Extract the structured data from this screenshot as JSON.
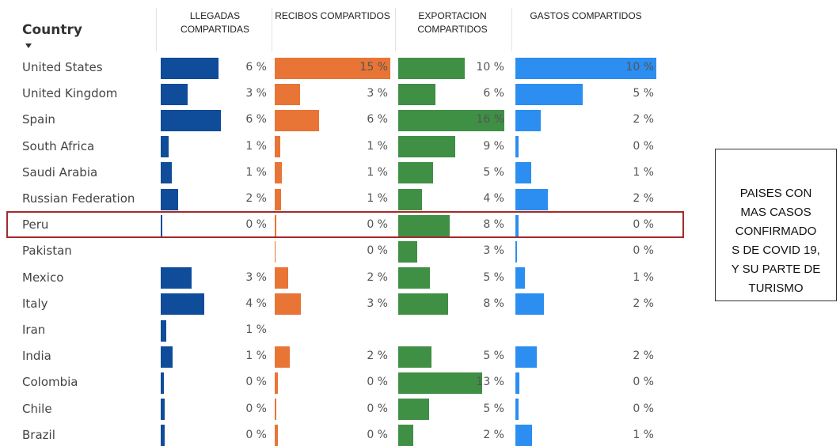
{
  "chart_data": {
    "type": "bar-table",
    "category_header": "Country",
    "categories": [
      "United States",
      "United Kingdom",
      "Spain",
      "South Africa",
      "Saudi Arabia",
      "Russian Federation",
      "Peru",
      "Pakistan",
      "Mexico",
      "Italy",
      "Iran",
      "India",
      "Colombia",
      "Chile",
      "Brazil"
    ],
    "highlight": 6,
    "series": [
      {
        "name": "LLEGADAS COMPARTIDAS",
        "color": "#0f4c9a",
        "xlim": [
          0,
          11
        ],
        "values": [
          5.9,
          2.7,
          6.1,
          0.8,
          1.1,
          1.8,
          0.2,
          null,
          3.1,
          4.4,
          0.6,
          1.2,
          0.3,
          0.4,
          0.4
        ],
        "value_labels": [
          "6 %",
          "3 %",
          "6 %",
          "1 %",
          "1 %",
          "2 %",
          "0 %",
          null,
          "3 %",
          "4 %",
          "1 %",
          "1 %",
          "0 %",
          "0 %",
          "0 %"
        ]
      },
      {
        "name": "RECIBOS COMPARTIDOS",
        "color": "#e87436",
        "xlim": [
          0,
          15.2
        ],
        "values": [
          15.2,
          3.3,
          5.8,
          0.7,
          0.9,
          0.8,
          0.2,
          0.1,
          1.8,
          3.4,
          null,
          2.0,
          0.4,
          0.2,
          0.4
        ],
        "value_labels": [
          "15 %",
          "3 %",
          "6 %",
          "1 %",
          "1 %",
          "1 %",
          "0 %",
          "0 %",
          "2 %",
          "3 %",
          null,
          "2 %",
          "0 %",
          "0 %",
          "0 %"
        ]
      },
      {
        "name": "EXPORTACION COMPARTIDOS",
        "color": "#3f8f45",
        "xlim": [
          0,
          16.3
        ],
        "values": [
          10.0,
          5.6,
          16.0,
          8.6,
          5.2,
          3.6,
          7.7,
          2.8,
          4.8,
          7.5,
          null,
          5.0,
          12.6,
          4.6,
          2.3
        ],
        "value_labels": [
          "10 %",
          "6 %",
          "16 %",
          "9 %",
          "5 %",
          "4 %",
          "8 %",
          "3 %",
          "5 %",
          "8 %",
          null,
          "5 %",
          "13 %",
          "5 %",
          "2 %"
        ]
      },
      {
        "name": "GASTOS COMPARTIDOS",
        "color": "#2b8ef0",
        "xlim": [
          0,
          10
        ],
        "values": [
          10.0,
          4.8,
          1.8,
          0.2,
          1.1,
          2.3,
          0.2,
          0.1,
          0.7,
          2.0,
          null,
          1.5,
          0.3,
          0.2,
          1.2
        ],
        "value_labels": [
          "10 %",
          "5 %",
          "2 %",
          "0 %",
          "1 %",
          "2 %",
          "0 %",
          "0 %",
          "1 %",
          "2 %",
          null,
          "2 %",
          "0 %",
          "0 %",
          "1 %"
        ]
      }
    ],
    "annotation": [
      "PAISES CON",
      "MAS CASOS",
      "CONFIRMADO",
      "S DE COVID 19,",
      "Y SU PARTE DE",
      "TURISMO"
    ]
  }
}
